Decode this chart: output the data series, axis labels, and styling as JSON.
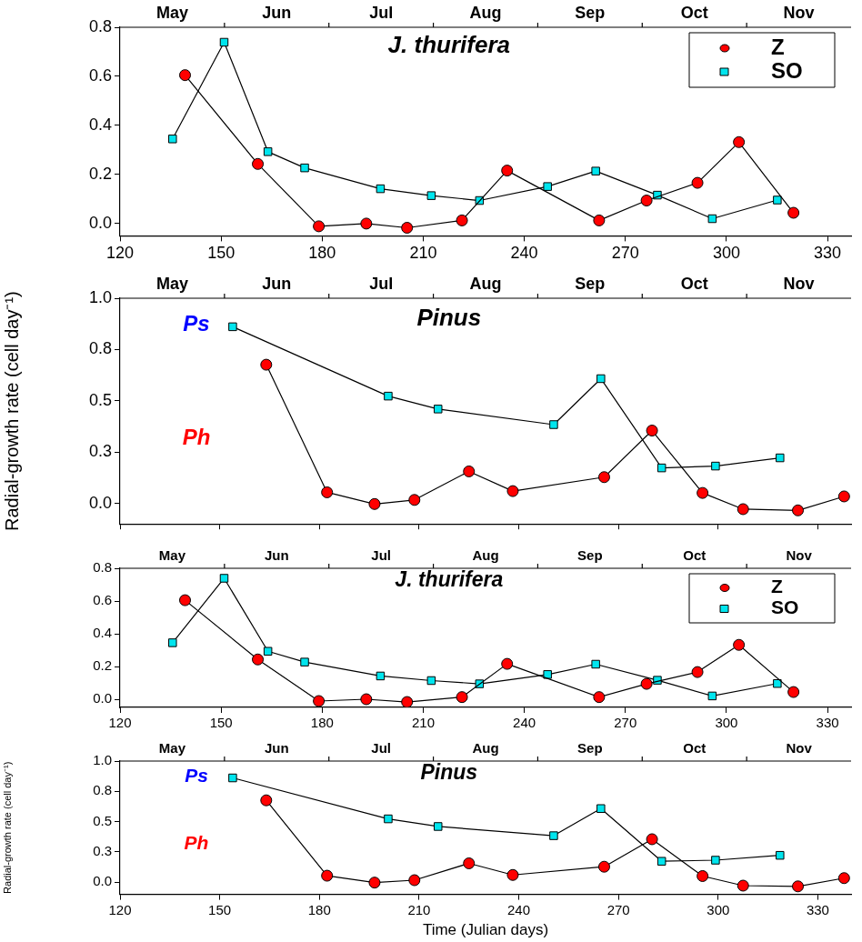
{
  "chart_data": [
    {
      "type": "line",
      "title": "J. thurifera",
      "annotations": [
        "May",
        "Jun",
        "Jul",
        "Aug",
        "Sep",
        "Oct",
        "Nov"
      ],
      "xlim": [
        120,
        337
      ],
      "xticks": [
        120,
        150,
        180,
        210,
        240,
        270,
        300,
        330
      ],
      "ylim": [
        -0.05,
        0.8
      ],
      "yticks": [
        {
          "value": 0,
          "label": "0.0"
        },
        {
          "value": 0.2,
          "label": "0.2"
        },
        {
          "value": 0.4,
          "label": "0.4"
        },
        {
          "value": 0.6,
          "label": "0.6"
        },
        {
          "value": 0.8,
          "label": "0.8"
        }
      ],
      "legend": "top right",
      "grid": false,
      "line_style": "solid",
      "series": [
        {
          "name": "Z",
          "color": "#ff0000",
          "marker": "circle",
          "x": [
            139.3,
            160.9,
            179,
            193.1,
            205.2,
            221.5,
            234.9,
            262.2,
            276.3,
            291.4,
            303.7,
            319.9
          ],
          "values": [
            0.605,
            0.243,
            -0.011,
            0,
            -0.017,
            0.013,
            0.216,
            0.013,
            0.094,
            0.166,
            0.332,
            0.044
          ]
        },
        {
          "name": "SO",
          "color": "#00e5ee",
          "marker": "square",
          "x": [
            135.6,
            150.9,
            163.9,
            174.8,
            197.3,
            212.4,
            226.7,
            246.9,
            261.2,
            279.5,
            295.8,
            315.1
          ],
          "values": [
            0.345,
            0.739,
            0.293,
            0.227,
            0.142,
            0.114,
            0.094,
            0.151,
            0.214,
            0.116,
            0.02,
            0.096
          ]
        }
      ]
    },
    {
      "type": "line",
      "title": "Pinus",
      "annotations": [
        "May",
        "Jun",
        "Jul",
        "Aug",
        "Sep",
        "Oct",
        "Nov"
      ],
      "ylabel": "Radial-growth rate (cell day⁻¹)",
      "xlim": [
        120,
        340
      ],
      "xticks": [
        120,
        150,
        180,
        210,
        240,
        270,
        300,
        330
      ],
      "tick_labels": "y",
      "ylim": [
        -0.1,
        1.0
      ],
      "yticks": [
        {
          "value": 0,
          "label": "0.0"
        },
        {
          "value": 0.25,
          "label": "0.3"
        },
        {
          "value": 0.5,
          "label": "0.5"
        },
        {
          "value": 0.75,
          "label": "0.8"
        },
        {
          "value": 1.0,
          "label": "1.0"
        }
      ],
      "grid": false,
      "line_style": "solid",
      "series": [
        {
          "name": "Ps",
          "color": "#00e5ee",
          "marker": "square",
          "x": [
            153.9,
            200.7,
            215.7,
            250.5,
            264.7,
            283.0,
            299.2,
            318.6
          ],
          "values": [
            0.861,
            0.523,
            0.46,
            0.384,
            0.608,
            0.173,
            0.182,
            0.222
          ]
        },
        {
          "name": "Ph",
          "color": "#ff0000",
          "marker": "circle",
          "x": [
            164,
            182.3,
            196.6,
            208.6,
            225,
            238.2,
            265.7,
            280.1,
            295.3,
            307.5,
            324,
            337.9
          ],
          "values": [
            0.676,
            0.054,
            -0.003,
            0.017,
            0.156,
            0.06,
            0.128,
            0.355,
            0.051,
            -0.028,
            -0.034,
            0.034
          ]
        }
      ]
    },
    {
      "type": "line",
      "title": "J. thurifera",
      "annotations": [
        "May",
        "Jun",
        "Jul",
        "Aug",
        "Sep",
        "Oct",
        "Nov"
      ],
      "xlim": [
        120,
        337
      ],
      "xticks": [
        120,
        150,
        180,
        210,
        240,
        270,
        300,
        330
      ],
      "ylim": [
        -0.05,
        0.8
      ],
      "yticks": [
        {
          "value": 0,
          "label": "0.0"
        },
        {
          "value": 0.2,
          "label": "0.2"
        },
        {
          "value": 0.4,
          "label": "0.4"
        },
        {
          "value": 0.6,
          "label": "0.6"
        },
        {
          "value": 0.8,
          "label": "0.8"
        }
      ],
      "legend": "top right",
      "grid": false,
      "line_style": "solid",
      "series": [
        {
          "name": "Z",
          "color": "#ff0000",
          "marker": "circle",
          "x": [
            139.3,
            160.9,
            179,
            193.1,
            205.2,
            221.5,
            234.9,
            262.2,
            276.3,
            291.4,
            303.7,
            319.9
          ],
          "values": [
            0.605,
            0.243,
            -0.011,
            0,
            -0.017,
            0.013,
            0.216,
            0.013,
            0.094,
            0.166,
            0.332,
            0.044
          ]
        },
        {
          "name": "SO",
          "color": "#00e5ee",
          "marker": "square",
          "x": [
            135.6,
            150.9,
            163.9,
            174.8,
            197.3,
            212.4,
            226.7,
            246.9,
            261.2,
            279.5,
            295.8,
            315.1
          ],
          "values": [
            0.345,
            0.739,
            0.293,
            0.227,
            0.142,
            0.114,
            0.094,
            0.151,
            0.214,
            0.116,
            0.02,
            0.096
          ]
        }
      ]
    },
    {
      "type": "line",
      "title": "Pinus",
      "annotations": [
        "May",
        "Jun",
        "Jul",
        "Aug",
        "Sep",
        "Oct",
        "Nov"
      ],
      "xlabel": "Time (Julian days)",
      "ylabel": "Radial-growth rate (cell day⁻¹)",
      "xlim": [
        120,
        340
      ],
      "xticks": [
        120,
        150,
        180,
        210,
        240,
        270,
        300,
        330
      ],
      "ylim": [
        -0.1,
        1.0
      ],
      "yticks": [
        {
          "value": 0,
          "label": "0.0"
        },
        {
          "value": 0.25,
          "label": "0.3"
        },
        {
          "value": 0.5,
          "label": "0.5"
        },
        {
          "value": 0.75,
          "label": "0.8"
        },
        {
          "value": 1.0,
          "label": "1.0"
        }
      ],
      "grid": false,
      "line_style": "solid",
      "series": [
        {
          "name": "Ps",
          "color": "#00e5ee",
          "marker": "square",
          "x": [
            153.9,
            200.7,
            215.7,
            250.5,
            264.7,
            283.0,
            299.2,
            318.6
          ],
          "values": [
            0.861,
            0.523,
            0.46,
            0.384,
            0.608,
            0.173,
            0.182,
            0.222
          ]
        },
        {
          "name": "Ph",
          "color": "#ff0000",
          "marker": "circle",
          "x": [
            164,
            182.3,
            196.6,
            208.6,
            225,
            238.2,
            265.7,
            280.1,
            295.3,
            307.5,
            324,
            337.9
          ],
          "values": [
            0.676,
            0.054,
            -0.003,
            0.017,
            0.156,
            0.06,
            0.128,
            0.355,
            0.051,
            -0.028,
            -0.034,
            0.034
          ]
        }
      ]
    }
  ]
}
